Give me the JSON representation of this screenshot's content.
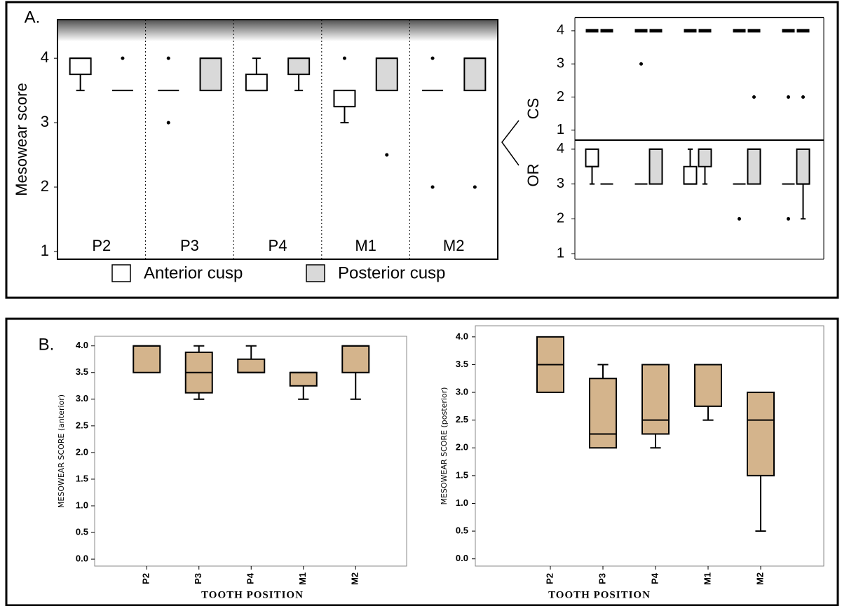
{
  "chart_data": [
    {
      "type": "box",
      "panel_label": "A.",
      "ylabel": "Mesowear score",
      "categories": [
        "P2",
        "P3",
        "P4",
        "M1",
        "M2"
      ],
      "ylim": [
        0.88,
        4.6
      ],
      "yticks": [
        1,
        2,
        3,
        4
      ],
      "series": [
        {
          "name": "Anterior cusp",
          "color": "#ffffff",
          "boxes": [
            {
              "whisker_low": 3.5,
              "q1": 3.75,
              "median": 4,
              "q3": 4,
              "whisker_high": 4
            },
            {
              "whisker_low": 3.5,
              "q1": 3.5,
              "median": 3.5,
              "q3": 3.5,
              "whisker_high": 3.5,
              "outliers": [
                4,
                3
              ]
            },
            {
              "whisker_low": 3.5,
              "q1": 3.5,
              "median": 3.5,
              "q3": 3.75,
              "whisker_high": 4
            },
            {
              "whisker_low": 3,
              "q1": 3.25,
              "median": 3.25,
              "q3": 3.5,
              "whisker_high": 3.5,
              "outliers": [
                4
              ]
            },
            {
              "whisker_low": 3.5,
              "q1": 3.5,
              "median": 3.5,
              "q3": 3.5,
              "whisker_high": 3.5,
              "outliers": [
                4,
                2
              ]
            }
          ]
        },
        {
          "name": "Posterior cusp",
          "color": "#d9d9d9",
          "boxes": [
            {
              "whisker_low": 3.5,
              "q1": 3.5,
              "median": 3.5,
              "q3": 3.5,
              "whisker_high": 3.5,
              "outliers": [
                4
              ]
            },
            {
              "whisker_low": 3.5,
              "q1": 3.5,
              "median": 4,
              "q3": 4,
              "whisker_high": 4
            },
            {
              "whisker_low": 3.5,
              "q1": 3.75,
              "median": 4,
              "q3": 4,
              "whisker_high": 4
            },
            {
              "whisker_low": 3.5,
              "q1": 3.5,
              "median": 4,
              "q3": 4,
              "whisker_high": 4,
              "outliers": [
                2.5
              ]
            },
            {
              "whisker_low": 3.5,
              "q1": 3.5,
              "median": 4,
              "q3": 4,
              "whisker_high": 4,
              "outliers": [
                2
              ]
            }
          ]
        }
      ]
    },
    {
      "type": "box",
      "ylabel": "CS",
      "ylim": [
        0.7,
        4.4
      ],
      "yticks": [
        1,
        2,
        3,
        4
      ],
      "series": [
        {
          "color": "#ffffff",
          "boxes": [
            {
              "whisker_low": 4,
              "q1": 4,
              "median": 4,
              "q3": 4,
              "whisker_high": 4
            },
            {
              "whisker_low": 4,
              "q1": 4,
              "median": 4,
              "q3": 4,
              "whisker_high": 4,
              "outliers": [
                3
              ]
            },
            {
              "whisker_low": 4,
              "q1": 4,
              "median": 4,
              "q3": 4,
              "whisker_high": 4
            },
            {
              "whisker_low": 4,
              "q1": 4,
              "median": 4,
              "q3": 4,
              "whisker_high": 4
            },
            {
              "whisker_low": 4,
              "q1": 4,
              "median": 4,
              "q3": 4,
              "whisker_high": 4,
              "outliers": [
                2
              ]
            }
          ]
        },
        {
          "color": "#d9d9d9",
          "boxes": [
            {
              "whisker_low": 4,
              "q1": 4,
              "median": 4,
              "q3": 4,
              "whisker_high": 4
            },
            {
              "whisker_low": 4,
              "q1": 4,
              "median": 4,
              "q3": 4,
              "whisker_high": 4
            },
            {
              "whisker_low": 4,
              "q1": 4,
              "median": 4,
              "q3": 4,
              "whisker_high": 4
            },
            {
              "whisker_low": 4,
              "q1": 4,
              "median": 4,
              "q3": 4,
              "whisker_high": 4,
              "outliers": [
                2
              ]
            },
            {
              "whisker_low": 4,
              "q1": 4,
              "median": 4,
              "q3": 4,
              "whisker_high": 4,
              "outliers": [
                2
              ]
            }
          ]
        }
      ]
    },
    {
      "type": "box",
      "ylabel": "OR",
      "ylim": [
        0.84,
        4.26
      ],
      "yticks": [
        1,
        2,
        3,
        4
      ],
      "series": [
        {
          "color": "#ffffff",
          "boxes": [
            {
              "whisker_low": 3,
              "q1": 3.5,
              "median": 3.5,
              "q3": 4,
              "whisker_high": 4
            },
            {
              "whisker_low": 3,
              "q1": 3,
              "median": 3,
              "q3": 3,
              "whisker_high": 3
            },
            {
              "whisker_low": 3,
              "q1": 3,
              "median": 3,
              "q3": 3.5,
              "whisker_high": 4
            },
            {
              "whisker_low": 3,
              "q1": 3,
              "median": 3,
              "q3": 3,
              "whisker_high": 3,
              "outliers": [
                2
              ]
            },
            {
              "whisker_low": 3,
              "q1": 3,
              "median": 3,
              "q3": 3,
              "whisker_high": 3,
              "outliers": [
                2
              ]
            }
          ]
        },
        {
          "color": "#d9d9d9",
          "boxes": [
            {
              "whisker_low": 3,
              "q1": 3,
              "median": 3,
              "q3": 3,
              "whisker_high": 3
            },
            {
              "whisker_low": 3,
              "q1": 3,
              "median": 4,
              "q3": 4,
              "whisker_high": 4
            },
            {
              "whisker_low": 3,
              "q1": 3.5,
              "median": 4,
              "q3": 4,
              "whisker_high": 4
            },
            {
              "whisker_low": 3,
              "q1": 3,
              "median": 4,
              "q3": 4,
              "whisker_high": 4
            },
            {
              "whisker_low": 2,
              "q1": 3,
              "median": 3,
              "q3": 4,
              "whisker_high": 4
            }
          ]
        }
      ]
    },
    {
      "type": "box",
      "panel_label": "B.",
      "ylabel": "MESOWEAR SCORE (anterior)",
      "xlabel": "TOOTH POSITION",
      "categories": [
        "P2",
        "P3",
        "P4",
        "M1",
        "M2"
      ],
      "color": "#d4b48c",
      "ylim": [
        -0.13,
        4.18
      ],
      "yticks": [
        {
          "value": 0,
          "label": "0.0"
        },
        {
          "value": 0.5,
          "label": "0.5"
        },
        {
          "value": 1,
          "label": "1.0"
        },
        {
          "value": 1.5,
          "label": "1.5"
        },
        {
          "value": 2,
          "label": "2.0"
        },
        {
          "value": 2.5,
          "label": "2.5"
        },
        {
          "value": 3,
          "label": "3.0"
        },
        {
          "value": 3.5,
          "label": "3.5"
        },
        {
          "value": 4,
          "label": "4.0"
        }
      ],
      "boxes": [
        {
          "whisker_low": 3.5,
          "q1": 3.5,
          "median": 4,
          "q3": 4,
          "whisker_high": 4
        },
        {
          "whisker_low": 3,
          "q1": 3.12,
          "median": 3.5,
          "q3": 3.88,
          "whisker_high": 4
        },
        {
          "whisker_low": 3.5,
          "q1": 3.5,
          "median": 3.5,
          "q3": 3.75,
          "whisker_high": 4
        },
        {
          "whisker_low": 3,
          "q1": 3.25,
          "median": 3.5,
          "q3": 3.5,
          "whisker_high": 3.5
        },
        {
          "whisker_low": 3,
          "q1": 3.5,
          "median": 4,
          "q3": 4,
          "whisker_high": 4
        }
      ]
    },
    {
      "type": "box",
      "ylabel": "MESOWEAR SCORE (posterior)",
      "xlabel": "TOOTH POSITION",
      "categories": [
        "P2",
        "P3",
        "P4",
        "M1",
        "M2"
      ],
      "color": "#d4b48c",
      "ylim": [
        -0.13,
        4.2
      ],
      "yticks": [
        {
          "value": 0,
          "label": "0.0"
        },
        {
          "value": 0.5,
          "label": "0.5"
        },
        {
          "value": 1,
          "label": "1.0"
        },
        {
          "value": 1.5,
          "label": "1.5"
        },
        {
          "value": 2,
          "label": "2.0"
        },
        {
          "value": 2.5,
          "label": "2.5"
        },
        {
          "value": 3,
          "label": "3.0"
        },
        {
          "value": 3.5,
          "label": "3.5"
        },
        {
          "value": 4,
          "label": "4.0"
        }
      ],
      "boxes": [
        {
          "whisker_low": 3,
          "q1": 3,
          "median": 3.5,
          "q3": 4,
          "whisker_high": 4
        },
        {
          "whisker_low": 2,
          "q1": 2,
          "median": 2.25,
          "q3": 3.25,
          "whisker_high": 3.5
        },
        {
          "whisker_low": 2,
          "q1": 2.25,
          "median": 2.5,
          "q3": 3.5,
          "whisker_high": 3.5
        },
        {
          "whisker_low": 2.5,
          "q1": 2.75,
          "median": 3.5,
          "q3": 3.5,
          "whisker_high": 3.5
        },
        {
          "whisker_low": 0.5,
          "q1": 1.5,
          "median": 2.5,
          "q3": 3,
          "whisker_high": 3
        }
      ]
    }
  ]
}
